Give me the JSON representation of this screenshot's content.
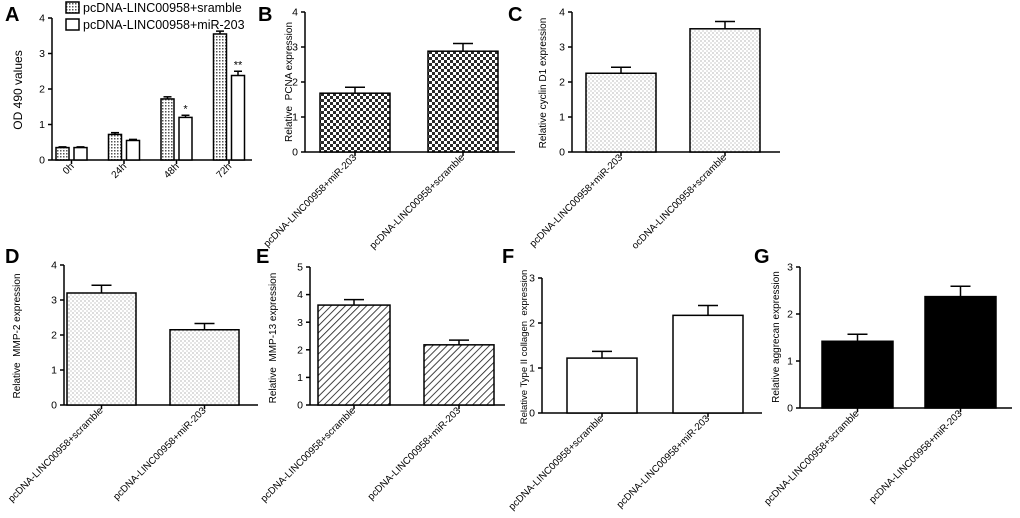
{
  "chart_data": [
    {
      "panel_label": "A",
      "type": "bar",
      "ylabel": "OD 490 values",
      "ylim": [
        0,
        4
      ],
      "yticks": [
        0,
        1,
        2,
        3,
        4
      ],
      "categories": [
        "0h",
        "24h",
        "48h",
        "72h"
      ],
      "series": [
        {
          "name": "pcDNA-LINC00958+sramble",
          "values": [
            0.35,
            0.72,
            1.72,
            3.55
          ],
          "errors": [
            0.02,
            0.05,
            0.06,
            0.08
          ]
        },
        {
          "name": "pcDNA-LINC00958+miR-203",
          "values": [
            0.35,
            0.55,
            1.2,
            2.38
          ],
          "errors": [
            0.02,
            0.03,
            0.06,
            0.12
          ]
        }
      ],
      "annotations": [
        {
          "category": "48h",
          "series": 1,
          "text": "*"
        },
        {
          "category": "72h",
          "series": 1,
          "text": "**"
        }
      ],
      "legend": "top-left"
    },
    {
      "panel_label": "B",
      "type": "bar",
      "ylabel": "Relative  PCNA expression",
      "ylim": [
        0,
        4
      ],
      "yticks": [
        0,
        1,
        2,
        3,
        4
      ],
      "categories": [
        "pcDNA-LINC00958+miR-203",
        "pcDNA-LINC00958+scramble"
      ],
      "values": [
        1.68,
        2.88
      ],
      "errors": [
        0.17,
        0.22
      ]
    },
    {
      "panel_label": "C",
      "type": "bar",
      "ylabel": "Relative cyclin D1 expression",
      "ylim": [
        0,
        4
      ],
      "yticks": [
        0,
        1,
        2,
        3,
        4
      ],
      "categories": [
        "pcDNA-LINC00958+miR-203",
        "ocDNA-LINC00958+scramble"
      ],
      "values": [
        2.25,
        3.52
      ],
      "errors": [
        0.17,
        0.21
      ]
    },
    {
      "panel_label": "D",
      "type": "bar",
      "ylabel": "Relative  MMP-2 expression",
      "ylim": [
        0,
        4
      ],
      "yticks": [
        0,
        1,
        2,
        3,
        4
      ],
      "categories": [
        "pcDNA-LINC00958+scramble",
        "pcDNA-LINC00958+miR-203"
      ],
      "values": [
        3.2,
        2.15
      ],
      "errors": [
        0.22,
        0.18
      ]
    },
    {
      "panel_label": "E",
      "type": "bar",
      "ylabel": "Relative  MMP-13 expression",
      "ylim": [
        0,
        5
      ],
      "yticks": [
        0,
        1,
        2,
        3,
        4,
        5
      ],
      "categories": [
        "pcDNA-LINC00958+scramble",
        "pcDNA-LINC00958+miR-203"
      ],
      "values": [
        3.62,
        2.18
      ],
      "errors": [
        0.2,
        0.17
      ]
    },
    {
      "panel_label": "F",
      "type": "bar",
      "ylabel": "Relative Type II collagen  expression",
      "ylim": [
        0,
        3
      ],
      "yticks": [
        0,
        1,
        2,
        3
      ],
      "categories": [
        "pcDNA-LINC00958+scramble",
        "pcDNA-LINC00958+miR-203"
      ],
      "values": [
        1.22,
        2.17
      ],
      "errors": [
        0.15,
        0.22
      ]
    },
    {
      "panel_label": "G",
      "type": "bar",
      "ylabel": "Relative aggrecan expression",
      "ylim": [
        0,
        3
      ],
      "yticks": [
        0,
        1,
        2,
        3
      ],
      "categories": [
        "pcDNA-LINC00958+scramble",
        "pcDNA-LINC00958+miR-203"
      ],
      "values": [
        1.42,
        2.37
      ],
      "errors": [
        0.15,
        0.22
      ]
    }
  ]
}
